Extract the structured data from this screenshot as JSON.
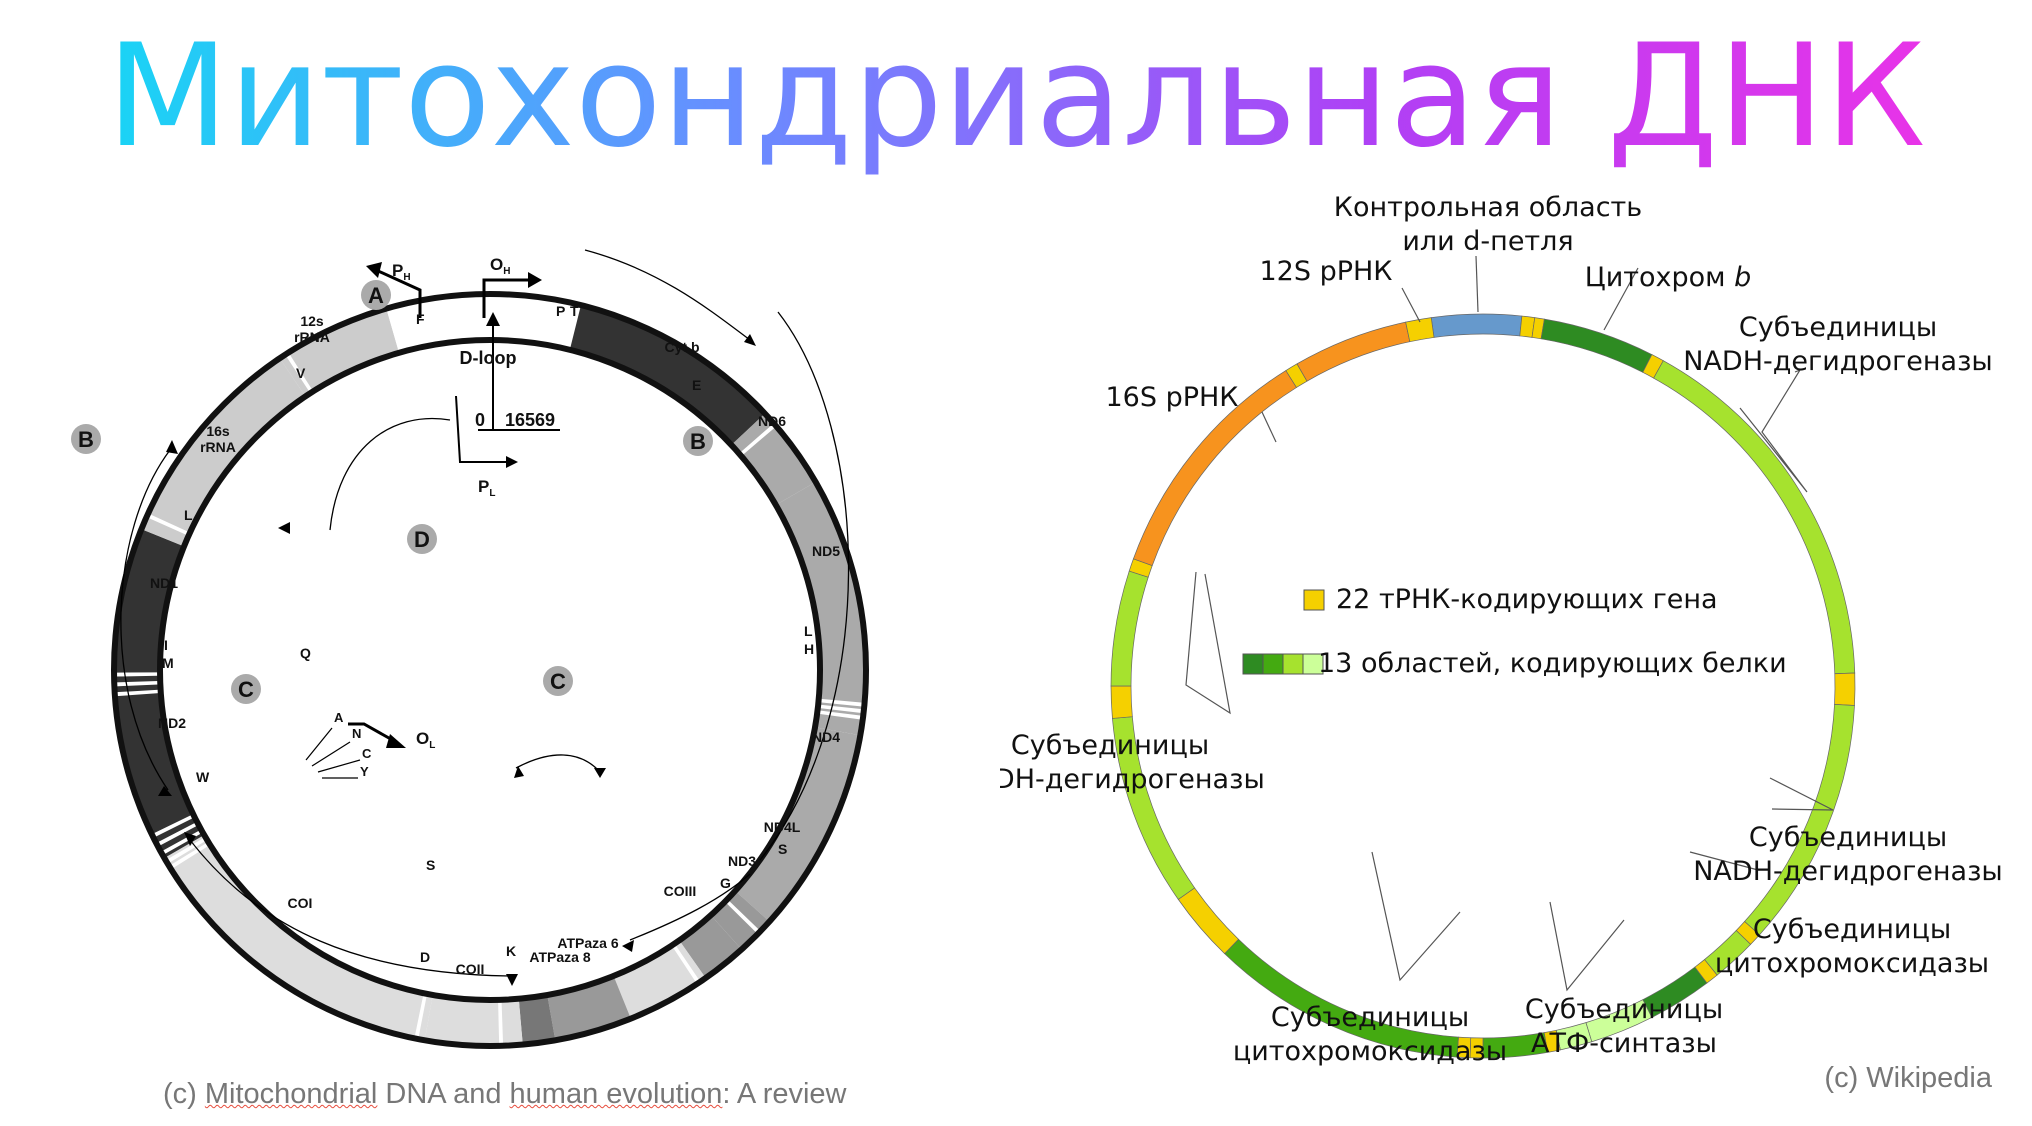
{
  "title": "Митохондриальная ДНК",
  "colors": {
    "title_gradient": [
      "#19d4f5",
      "#6a8cff",
      "#c23cf5",
      "#e833e8"
    ],
    "rrna": "#f7931e",
    "control": "#6699cc",
    "trna": "#f5d000",
    "nd": "#a6e22e",
    "cox": "#44aa11",
    "cytb": "#2e8b22",
    "atp": "#ccff99"
  },
  "left": {
    "credit_prefix": "(c) ",
    "credit_link1": "Mitochondrial",
    "credit_mid": " DNA and ",
    "credit_link2": "human evolution",
    "credit_suffix": ": A review",
    "dloop": "D-loop",
    "zero": "0",
    "length": "16569",
    "ph": "P",
    "ph_sub": "H",
    "oh": "O",
    "oh_sub": "H",
    "pl": "P",
    "pl_sub": "L",
    "ol": "O",
    "ol_sub": "L",
    "regions": {
      "a": "A",
      "b_left": "B",
      "b_right": "B",
      "c_left": "C",
      "c_right": "C",
      "d": "D",
      "e": "E"
    },
    "genes": {
      "rrna12s_1": "12s",
      "rrna12s_2": "rRNA",
      "rrna16s_1": "16s",
      "rrna16s_2": "rRNA",
      "nd1": "ND1",
      "nd2": "ND2",
      "coi": "COI",
      "coii": "COII",
      "atp8": "ATPaza 8",
      "atp6": "ATPaza 6",
      "coiii": "COIII",
      "nd3": "ND3",
      "nd4l": "ND4L",
      "nd4": "ND4",
      "nd5": "ND5",
      "nd6": "ND6",
      "cytb": "Cyt b"
    },
    "trna": {
      "f": "F",
      "v": "V",
      "l1": "L",
      "i": "I",
      "q": "Q",
      "m": "M",
      "w": "W",
      "a": "A",
      "n": "N",
      "c": "C",
      "y": "Y",
      "s1": "S",
      "d": "D",
      "k": "K",
      "g": "G",
      "r": "R",
      "h": "H",
      "s2": "S",
      "l2": "L",
      "e": "E",
      "t": "T",
      "p": "P"
    }
  },
  "right": {
    "credit": "(c) Wikipedia",
    "labels": {
      "control_1": "Контрольная область",
      "control_2": "или d-петля",
      "rrna12": "12S рРНК",
      "cytb_pre": "Цитохром ",
      "cytb_ital": "b",
      "nadh_tr_1": "Субъединицы",
      "nadh_tr_2": "NADH-дегидрогеназы",
      "rrna16": "16S рРНК",
      "nadh_l_1": "Субъединицы",
      "nadh_l_2": "NADH-дегидрогеназы",
      "nadh_br_1": "Субъединицы",
      "nadh_br_2": "NADH-дегидрогеназы",
      "cox_r_1": "Субъединицы",
      "cox_r_2": "цитохромоксидазы",
      "atp_1": "Субъединицы",
      "atp_2": "АТФ-синтазы",
      "cox_b_1": "Субъединицы",
      "cox_b_2": "цитохромоксидазы"
    },
    "legend": {
      "trna": "22 тРНК-кодирующих гена",
      "protein": "13 областей, кодирующих белки"
    }
  }
}
